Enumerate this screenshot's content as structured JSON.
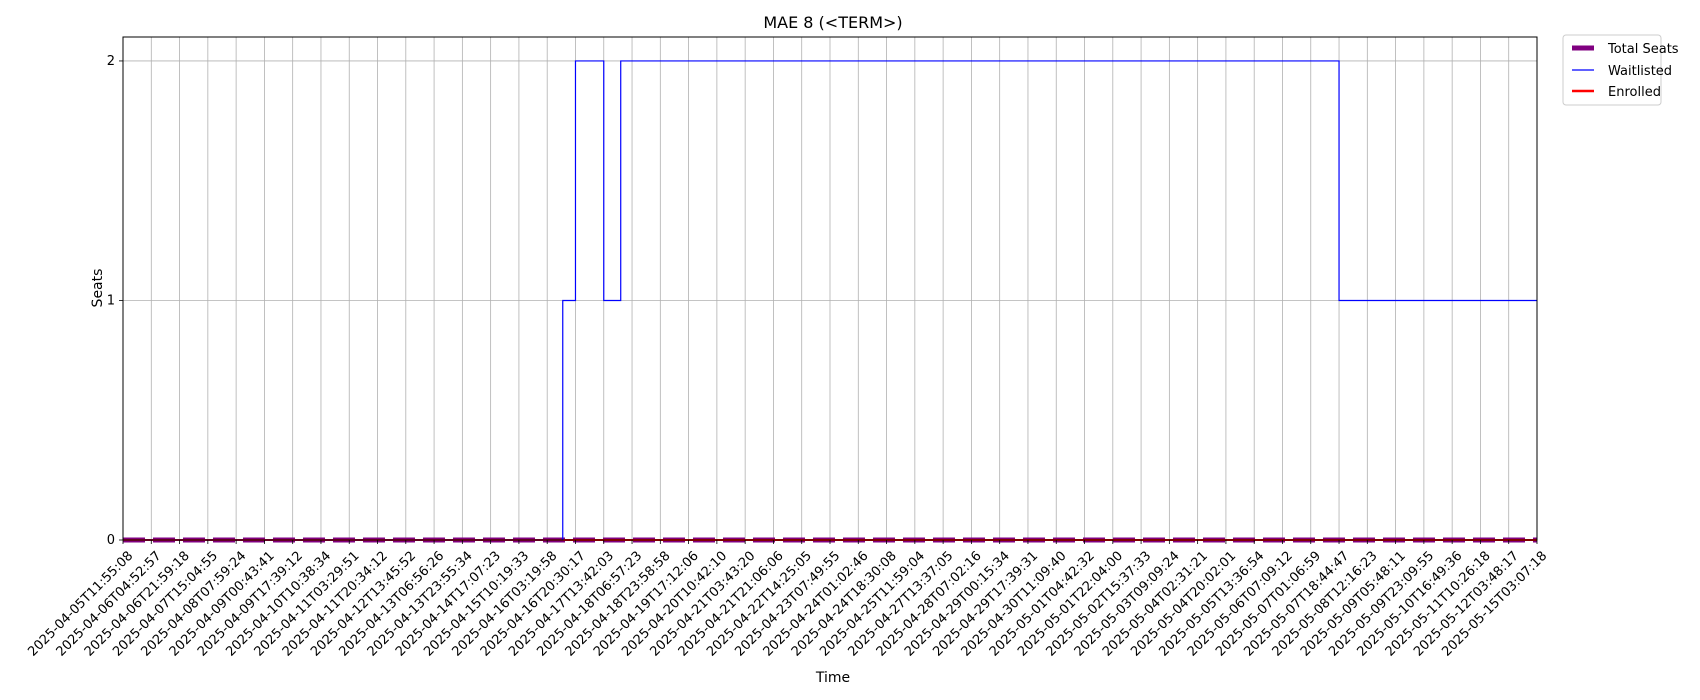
{
  "chart_data": {
    "type": "line",
    "title": "MAE 8 (<TERM>)",
    "xlabel": "Time",
    "ylabel": "Seats",
    "ylim": [
      0,
      2.1
    ],
    "yticks": [
      0,
      1,
      2
    ],
    "grid": true,
    "legend_position": "outside-top-right",
    "step": true,
    "x": [
      "2025-04-05T11:55:08",
      "2025-04-06T04:52:57",
      "2025-04-06T21:59:18",
      "2025-04-07T15:04:55",
      "2025-04-08T07:59:24",
      "2025-04-09T00:43:41",
      "2025-04-09T17:39:12",
      "2025-04-10T10:38:34",
      "2025-04-11T03:29:51",
      "2025-04-11T20:34:12",
      "2025-04-12T13:45:52",
      "2025-04-13T06:56:26",
      "2025-04-13T23:55:34",
      "2025-04-14T17:07:23",
      "2025-04-15T10:19:33",
      "2025-04-16T03:19:58",
      "2025-04-16T20:30:17",
      "2025-04-17T13:42:03",
      "2025-04-18T06:57:23",
      "2025-04-18T23:58:58",
      "2025-04-19T17:12:06",
      "2025-04-20T10:42:10",
      "2025-04-21T03:43:20",
      "2025-04-21T21:06:06",
      "2025-04-22T14:25:05",
      "2025-04-23T07:49:55",
      "2025-04-24T01:02:46",
      "2025-04-24T18:30:08",
      "2025-04-25T11:59:04",
      "2025-04-27T13:37:05",
      "2025-04-28T07:02:16",
      "2025-04-29T00:15:34",
      "2025-04-29T17:39:31",
      "2025-04-30T11:09:40",
      "2025-05-01T04:42:32",
      "2025-05-01T22:04:00",
      "2025-05-02T15:37:33",
      "2025-05-03T09:09:24",
      "2025-05-04T02:31:21",
      "2025-05-04T20:02:01",
      "2025-05-05T13:36:54",
      "2025-05-06T07:09:12",
      "2025-05-07T01:06:59",
      "2025-05-07T18:44:47",
      "2025-05-08T12:16:23",
      "2025-05-09T05:48:11",
      "2025-05-09T23:09:55",
      "2025-05-10T16:49:36",
      "2025-05-11T10:26:18",
      "2025-05-12T03:48:17",
      "2025-05-15T03:07:18"
    ],
    "series": [
      {
        "name": "Total Seats",
        "color": "#800080",
        "style": "dashed",
        "values": [
          0,
          0,
          0,
          0,
          0,
          0,
          0,
          0,
          0,
          0,
          0,
          0,
          0,
          0,
          0,
          0,
          0,
          0,
          0,
          0,
          0,
          0,
          0,
          0,
          0,
          0,
          0,
          0,
          0,
          0,
          0,
          0,
          0,
          0,
          0,
          0,
          0,
          0,
          0,
          0,
          0,
          0,
          0,
          0,
          0,
          0,
          0,
          0,
          0,
          0,
          0
        ]
      },
      {
        "name": "Waitlisted",
        "color": "#0000ff",
        "style": "solid",
        "values": [
          0,
          0,
          0,
          0,
          0,
          0,
          0,
          0,
          0,
          0,
          0,
          0,
          0,
          0,
          0,
          0,
          2,
          2,
          2,
          2,
          2,
          2,
          2,
          2,
          2,
          2,
          2,
          2,
          2,
          2,
          2,
          2,
          2,
          2,
          2,
          2,
          2,
          2,
          2,
          2,
          2,
          2,
          2,
          1,
          1,
          1,
          1,
          1,
          1,
          1,
          1
        ],
        "extra_steps": [
          {
            "x_between": [
              "2025-04-16T03:19:58",
              "2025-04-16T20:30:17"
            ],
            "fraction": 0.0,
            "value": 0
          },
          {
            "x_between": [
              "2025-04-16T03:19:58",
              "2025-04-16T20:30:17"
            ],
            "fraction": 0.55,
            "value": 1
          },
          {
            "x_between": [
              "2025-04-16T03:19:58",
              "2025-04-16T20:30:17"
            ],
            "fraction": 1.0,
            "value": 2
          },
          {
            "x_between": [
              "2025-04-17T13:42:03",
              "2025-04-18T06:57:23"
            ],
            "fraction": 0.0,
            "value": 1
          },
          {
            "x_between": [
              "2025-04-17T13:42:03",
              "2025-04-18T06:57:23"
            ],
            "fraction": 0.6,
            "value": 2
          }
        ]
      },
      {
        "name": "Enrolled",
        "color": "#ff0000",
        "style": "solid",
        "values": [
          0,
          0,
          0,
          0,
          0,
          0,
          0,
          0,
          0,
          0,
          0,
          0,
          0,
          0,
          0,
          0,
          0,
          0,
          0,
          0,
          0,
          0,
          0,
          0,
          0,
          0,
          0,
          0,
          0,
          0,
          0,
          0,
          0,
          0,
          0,
          0,
          0,
          0,
          0,
          0,
          0,
          0,
          0,
          0,
          0,
          0,
          0,
          0,
          0,
          0,
          0
        ]
      }
    ]
  }
}
